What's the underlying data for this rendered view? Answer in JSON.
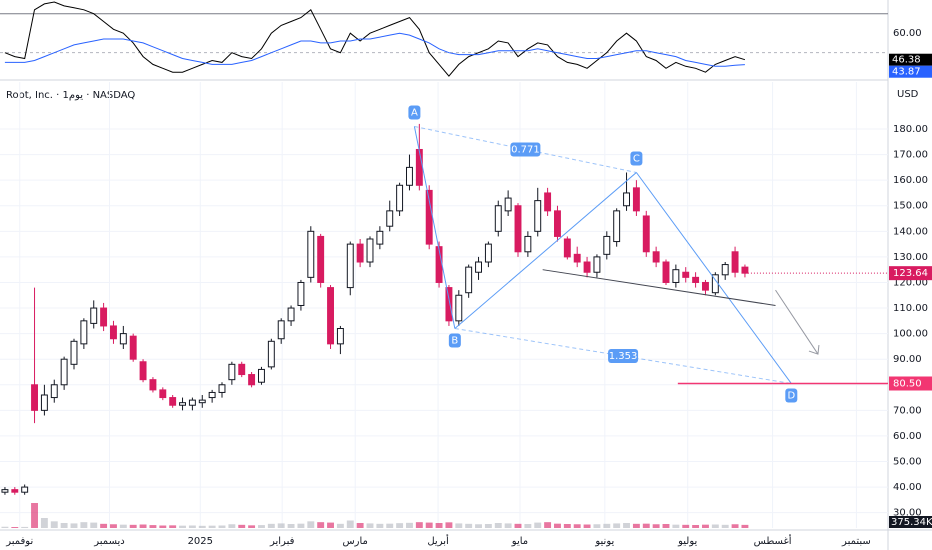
{
  "chart_data": {
    "type": "candlestick",
    "title": "Root, Inc. · 1يوم · NASDAQ",
    "currency": "USD",
    "ohlc": [
      [
        38,
        40,
        37,
        39
      ],
      [
        39,
        40,
        37,
        38
      ],
      [
        38,
        41,
        37,
        40
      ],
      [
        80,
        118,
        65,
        70
      ],
      [
        70,
        80,
        68,
        76
      ],
      [
        75,
        82,
        73,
        80
      ],
      [
        80,
        91,
        78,
        90
      ],
      [
        88,
        98,
        86,
        97
      ],
      [
        96,
        106,
        94,
        105
      ],
      [
        104,
        113,
        102,
        110
      ],
      [
        110,
        112,
        101,
        103
      ],
      [
        103,
        105,
        96,
        98
      ],
      [
        96,
        103,
        94,
        100
      ],
      [
        99,
        100,
        89,
        90
      ],
      [
        89,
        90,
        81,
        82
      ],
      [
        82,
        83,
        77,
        78
      ],
      [
        78,
        79,
        74,
        75
      ],
      [
        75,
        76,
        71,
        72
      ],
      [
        72,
        75,
        70,
        73
      ],
      [
        72,
        75,
        70,
        74
      ],
      [
        73,
        76,
        71,
        74
      ],
      [
        75,
        78,
        73,
        77
      ],
      [
        77,
        81,
        75,
        80
      ],
      [
        82,
        89,
        80,
        88
      ],
      [
        88,
        89,
        83,
        84
      ],
      [
        84,
        85,
        79,
        80
      ],
      [
        81,
        87,
        80,
        86
      ],
      [
        87,
        98,
        86,
        97
      ],
      [
        98,
        106,
        96,
        105
      ],
      [
        105,
        111,
        103,
        110
      ],
      [
        111,
        121,
        109,
        120
      ],
      [
        122,
        142,
        120,
        140
      ],
      [
        138,
        139,
        118,
        120
      ],
      [
        118,
        119,
        94,
        96
      ],
      [
        96,
        103,
        92,
        102
      ],
      [
        118,
        136,
        115,
        135
      ],
      [
        135,
        137,
        126,
        128
      ],
      [
        128,
        138,
        126,
        137
      ],
      [
        135,
        142,
        133,
        140
      ],
      [
        142,
        152,
        140,
        148
      ],
      [
        148,
        159,
        146,
        158
      ],
      [
        158,
        170,
        156,
        165
      ],
      [
        172,
        182,
        156,
        158
      ],
      [
        156,
        158,
        133,
        135
      ],
      [
        134,
        136,
        118,
        120
      ],
      [
        118,
        119,
        103,
        105
      ],
      [
        105,
        117,
        103,
        115
      ],
      [
        116,
        127,
        114,
        126
      ],
      [
        124,
        130,
        121,
        128
      ],
      [
        128,
        136,
        126,
        135
      ],
      [
        140,
        152,
        138,
        150
      ],
      [
        148,
        156,
        146,
        153
      ],
      [
        150,
        151,
        130,
        132
      ],
      [
        132,
        140,
        130,
        138
      ],
      [
        140,
        157,
        138,
        152
      ],
      [
        155,
        157,
        146,
        148
      ],
      [
        148,
        150,
        136,
        138
      ],
      [
        137,
        138,
        129,
        130
      ],
      [
        131,
        134,
        126,
        128
      ],
      [
        128,
        130,
        122,
        124
      ],
      [
        124,
        131,
        122,
        130
      ],
      [
        131,
        140,
        129,
        138
      ],
      [
        136,
        149,
        134,
        148
      ],
      [
        150,
        163,
        148,
        155
      ],
      [
        157,
        160,
        146,
        148
      ],
      [
        146,
        148,
        130,
        132
      ],
      [
        132,
        134,
        126,
        128
      ],
      [
        128,
        129,
        119,
        120
      ],
      [
        120,
        127,
        118,
        125
      ],
      [
        124,
        126,
        120,
        122
      ],
      [
        122,
        124,
        118,
        120
      ],
      [
        120,
        121,
        115,
        117
      ],
      [
        116,
        124,
        115,
        123
      ],
      [
        123,
        128,
        121,
        127
      ],
      [
        132,
        134,
        122,
        124
      ],
      [
        126,
        127,
        122,
        123.64
      ]
    ],
    "up_color": "#ffffff",
    "down_color": "#d81b60",
    "xlim": [
      -0.5,
      89.5
    ],
    "xticks": [
      {
        "value": 1.5,
        "label": "نوفمبر"
      },
      {
        "value": 10.6,
        "label": "ديسمبر"
      },
      {
        "value": 19.8,
        "label": "2025"
      },
      {
        "value": 28.1,
        "label": "فبراير"
      },
      {
        "value": 35.5,
        "label": "مارس"
      },
      {
        "value": 43.9,
        "label": "أبريل"
      },
      {
        "value": 52.2,
        "label": "مايو"
      },
      {
        "value": 60.8,
        "label": "يونيو"
      },
      {
        "value": 69.2,
        "label": "يوليو"
      },
      {
        "value": 77.8,
        "label": "أغسطس"
      },
      {
        "value": 86.3,
        "label": "سبتمبر"
      }
    ],
    "ylim": [
      24,
      193.3
    ],
    "yticks": [
      {
        "value": 30,
        "label": "30.00"
      },
      {
        "value": 40,
        "label": "40.00"
      },
      {
        "value": 50,
        "label": "50.00"
      },
      {
        "value": 60,
        "label": "60.00"
      },
      {
        "value": 70,
        "label": "70.00"
      },
      {
        "value": 80,
        "label": "80.00"
      },
      {
        "value": 90,
        "label": "90.00"
      },
      {
        "value": 100,
        "label": "100.00"
      },
      {
        "value": 110,
        "label": "110.00"
      },
      {
        "value": 120,
        "label": "120.00"
      },
      {
        "value": 130,
        "label": "130.00"
      },
      {
        "value": 140,
        "label": "140.00"
      },
      {
        "value": 150,
        "label": "150.00"
      },
      {
        "value": 160,
        "label": "160.00"
      },
      {
        "value": 170,
        "label": "170.00"
      },
      {
        "value": 180,
        "label": "180.00"
      }
    ],
    "grid": true,
    "volume": [
      150,
      120,
      130,
      3000,
      1200,
      800,
      600,
      550,
      700,
      650,
      500,
      450,
      400,
      380,
      420,
      350,
      300,
      320,
      280,
      300,
      260,
      280,
      300,
      450,
      380,
      320,
      350,
      500,
      550,
      480,
      520,
      800,
      700,
      650,
      500,
      900,
      600,
      550,
      500,
      520,
      580,
      620,
      700,
      650,
      600,
      680,
      550,
      500,
      450,
      480,
      600,
      550,
      500,
      480,
      650,
      700,
      520,
      480,
      450,
      420,
      450,
      500,
      550,
      600,
      500,
      520,
      450,
      480,
      400,
      380,
      360,
      400,
      420,
      380,
      450,
      375.34
    ],
    "volume_label": "375.34K",
    "pattern": {
      "color": "#5b9cf6",
      "points": [
        {
          "label": "A",
          "x": 41.5,
          "y": 181
        },
        {
          "label": "B",
          "x": 45.6,
          "y": 102
        },
        {
          "label": "C",
          "x": 64.0,
          "y": 163
        },
        {
          "label": "D",
          "x": 79.7,
          "y": 80.5
        }
      ],
      "ratios": [
        0.771,
        1.353
      ]
    },
    "target": {
      "value": 80.5,
      "label": "80.50",
      "x": 68.2,
      "color": "#f23672"
    },
    "trendline": [
      {
        "x": 54.5,
        "y": 125
      },
      {
        "x": 78.1,
        "y": 111
      }
    ],
    "arrow": [
      {
        "x": 78.1,
        "y": 117
      },
      {
        "x": 82.4,
        "y": 92
      }
    ],
    "indicator": {
      "ylim": [
        37,
        76
      ],
      "yticks": [
        {
          "value": 60,
          "label": "60.00"
        }
      ],
      "levels": [
        70,
        50
      ],
      "series": [
        {
          "color": "#000000",
          "values": [
            50,
            48,
            47,
            72,
            75,
            76,
            74,
            73,
            72,
            70,
            66,
            62,
            60,
            55,
            48,
            44,
            42,
            40,
            40,
            42,
            44,
            46,
            45,
            50,
            48,
            47,
            52,
            60,
            64,
            66,
            68,
            72,
            62,
            52,
            50,
            60,
            56,
            60,
            62,
            64,
            66,
            68,
            62,
            50,
            44,
            38,
            44,
            48,
            50,
            52,
            56,
            55,
            48,
            52,
            55,
            54,
            48,
            45,
            44,
            42,
            46,
            50,
            56,
            60,
            56,
            48,
            46,
            42,
            45,
            43,
            42,
            40,
            44,
            46,
            48,
            46.38
          ]
        },
        {
          "color": "#2962ff",
          "values": [
            45,
            45,
            45,
            46,
            48,
            50,
            52,
            54,
            55,
            56,
            57,
            57,
            57,
            56,
            55,
            53,
            51,
            49,
            47,
            46,
            45,
            44,
            44,
            44,
            45,
            46,
            48,
            50,
            52,
            54,
            56,
            56,
            55,
            55,
            56,
            56,
            57,
            57,
            58,
            59,
            60,
            59,
            57,
            55,
            52,
            50,
            49,
            49,
            49,
            50,
            51,
            51,
            51,
            51,
            52,
            51,
            50,
            49,
            48,
            47,
            47,
            48,
            49,
            50,
            51,
            51,
            50,
            49,
            48,
            46,
            45,
            44,
            43,
            43,
            43.5,
            43.87
          ]
        }
      ]
    }
  }
}
